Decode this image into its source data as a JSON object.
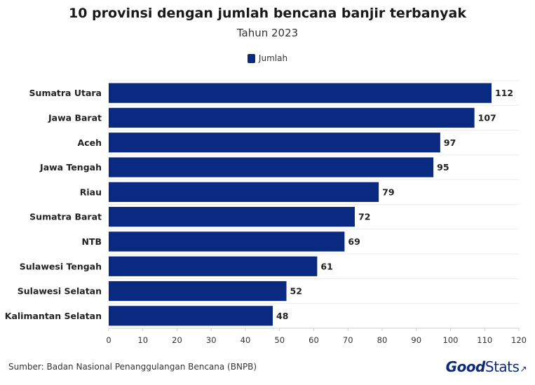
{
  "chart_data": {
    "type": "bar",
    "orientation": "horizontal",
    "title": "10 provinsi dengan jumlah bencana banjir terbanyak",
    "subtitle": "Tahun 2023",
    "categories": [
      "Sumatra Utara",
      "Jawa Barat",
      "Aceh",
      "Jawa Tengah",
      "Riau",
      "Sumatra Barat",
      "NTB",
      "Sulawesi Tengah",
      "Sulawesi Selatan",
      "Kalimantan Selatan"
    ],
    "series": [
      {
        "name": "Jumlah",
        "values": [
          112,
          107,
          97,
          95,
          79,
          72,
          69,
          61,
          52,
          48
        ],
        "color": "#0a2a82"
      }
    ],
    "xlim": [
      0,
      120
    ],
    "xticks": [
      0,
      10,
      20,
      30,
      40,
      50,
      60,
      70,
      80,
      90,
      100,
      110,
      120
    ],
    "grid": true,
    "legend_position": "top-center",
    "data_labels": true
  },
  "footer": {
    "source": "Sumber: Badan Nasional Penanggulangan Bencana (BNPB)",
    "logo_good": "Good",
    "logo_stats": "Stats"
  }
}
